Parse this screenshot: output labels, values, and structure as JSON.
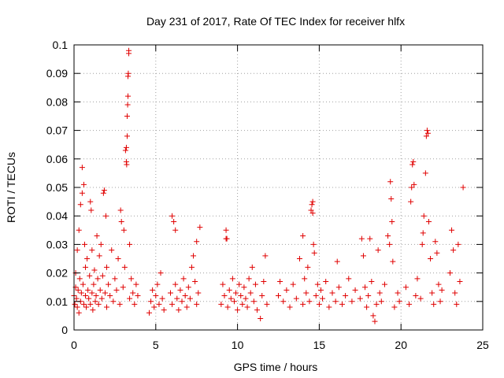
{
  "chart_data": {
    "type": "scatter",
    "title": "Day 231 of 2017, Rate Of TEC Index for receiver hlfx",
    "xlabel": "GPS time / hours",
    "ylabel": "ROTI / TECUs",
    "xlim": [
      0,
      25
    ],
    "ylim": [
      0,
      0.1
    ],
    "xticks": [
      0,
      5,
      10,
      15,
      20,
      25
    ],
    "yticks": [
      0,
      0.01,
      0.02,
      0.03,
      0.04,
      0.05,
      0.06,
      0.07,
      0.08,
      0.09,
      0.1
    ],
    "xtick_labels": [
      "0",
      "5",
      "10",
      "15",
      "20",
      "25"
    ],
    "ytick_labels": [
      "0",
      "0.01",
      "0.02",
      "0.03",
      "0.04",
      "0.05",
      "0.06",
      "0.07",
      "0.08",
      "0.09",
      "0.1"
    ],
    "grid": true,
    "marker": "+",
    "color": "#e00000",
    "series": [
      {
        "name": "ROTI",
        "points": [
          [
            0.0,
            0.012
          ],
          [
            0.05,
            0.009
          ],
          [
            0.1,
            0.015
          ],
          [
            0.1,
            0.02
          ],
          [
            0.15,
            0.011
          ],
          [
            0.2,
            0.008
          ],
          [
            0.2,
            0.028
          ],
          [
            0.25,
            0.014
          ],
          [
            0.3,
            0.006
          ],
          [
            0.3,
            0.035
          ],
          [
            0.35,
            0.018
          ],
          [
            0.4,
            0.01
          ],
          [
            0.4,
            0.044
          ],
          [
            0.45,
            0.013
          ],
          [
            0.5,
            0.057
          ],
          [
            0.5,
            0.048
          ],
          [
            0.55,
            0.016
          ],
          [
            0.6,
            0.051
          ],
          [
            0.6,
            0.009
          ],
          [
            0.65,
            0.03
          ],
          [
            0.7,
            0.022
          ],
          [
            0.7,
            0.012
          ],
          [
            0.75,
            0.008
          ],
          [
            0.8,
            0.025
          ],
          [
            0.85,
            0.014
          ],
          [
            0.9,
            0.011
          ],
          [
            0.95,
            0.019
          ],
          [
            1.0,
            0.045
          ],
          [
            1.0,
            0.009
          ],
          [
            1.05,
            0.042
          ],
          [
            1.1,
            0.013
          ],
          [
            1.1,
            0.028
          ],
          [
            1.15,
            0.007
          ],
          [
            1.2,
            0.016
          ],
          [
            1.25,
            0.021
          ],
          [
            1.3,
            0.01
          ],
          [
            1.35,
            0.012
          ],
          [
            1.4,
            0.033
          ],
          [
            1.45,
            0.018
          ],
          [
            1.5,
            0.009
          ],
          [
            1.55,
            0.026
          ],
          [
            1.6,
            0.014
          ],
          [
            1.65,
            0.03
          ],
          [
            1.7,
            0.011
          ],
          [
            1.75,
            0.019
          ],
          [
            1.8,
            0.048
          ],
          [
            1.85,
            0.049
          ],
          [
            1.9,
            0.013
          ],
          [
            1.95,
            0.04
          ],
          [
            2.0,
            0.022
          ],
          [
            2.0,
            0.008
          ],
          [
            2.1,
            0.016
          ],
          [
            2.2,
            0.012
          ],
          [
            2.3,
            0.028
          ],
          [
            2.4,
            0.01
          ],
          [
            2.5,
            0.018
          ],
          [
            2.6,
            0.014
          ],
          [
            2.7,
            0.025
          ],
          [
            2.8,
            0.009
          ],
          [
            2.85,
            0.042
          ],
          [
            2.9,
            0.038
          ],
          [
            3.0,
            0.015
          ],
          [
            3.05,
            0.035
          ],
          [
            3.1,
            0.022
          ],
          [
            3.15,
            0.063
          ],
          [
            3.2,
            0.064
          ],
          [
            3.2,
            0.059
          ],
          [
            3.22,
            0.058
          ],
          [
            3.25,
            0.068
          ],
          [
            3.25,
            0.075
          ],
          [
            3.28,
            0.079
          ],
          [
            3.3,
            0.082
          ],
          [
            3.3,
            0.089
          ],
          [
            3.32,
            0.09
          ],
          [
            3.35,
            0.097
          ],
          [
            3.35,
            0.098
          ],
          [
            3.4,
            0.03
          ],
          [
            3.4,
            0.011
          ],
          [
            3.5,
            0.018
          ],
          [
            3.6,
            0.013
          ],
          [
            3.7,
            0.009
          ],
          [
            3.8,
            0.016
          ],
          [
            3.9,
            0.012
          ],
          [
            4.6,
            0.006
          ],
          [
            4.7,
            0.01
          ],
          [
            4.8,
            0.014
          ],
          [
            4.9,
            0.008
          ],
          [
            5.0,
            0.012
          ],
          [
            5.1,
            0.016
          ],
          [
            5.2,
            0.009
          ],
          [
            5.3,
            0.02
          ],
          [
            5.4,
            0.011
          ],
          [
            5.5,
            0.007
          ],
          [
            5.9,
            0.013
          ],
          [
            6.0,
            0.009
          ],
          [
            6.0,
            0.04
          ],
          [
            6.1,
            0.038
          ],
          [
            6.2,
            0.035
          ],
          [
            6.2,
            0.016
          ],
          [
            6.3,
            0.011
          ],
          [
            6.4,
            0.007
          ],
          [
            6.5,
            0.014
          ],
          [
            6.6,
            0.01
          ],
          [
            6.7,
            0.018
          ],
          [
            6.8,
            0.012
          ],
          [
            6.9,
            0.008
          ],
          [
            7.0,
            0.015
          ],
          [
            7.1,
            0.011
          ],
          [
            7.2,
            0.022
          ],
          [
            7.3,
            0.026
          ],
          [
            7.4,
            0.017
          ],
          [
            7.5,
            0.031
          ],
          [
            7.5,
            0.009
          ],
          [
            7.6,
            0.013
          ],
          [
            7.7,
            0.036
          ],
          [
            9.0,
            0.009
          ],
          [
            9.1,
            0.016
          ],
          [
            9.2,
            0.012
          ],
          [
            9.3,
            0.035
          ],
          [
            9.3,
            0.032
          ],
          [
            9.35,
            0.032
          ],
          [
            9.4,
            0.008
          ],
          [
            9.5,
            0.014
          ],
          [
            9.6,
            0.011
          ],
          [
            9.7,
            0.018
          ],
          [
            9.8,
            0.01
          ],
          [
            9.9,
            0.013
          ],
          [
            10.0,
            0.007
          ],
          [
            10.1,
            0.016
          ],
          [
            10.2,
            0.012
          ],
          [
            10.3,
            0.009
          ],
          [
            10.4,
            0.015
          ],
          [
            10.5,
            0.011
          ],
          [
            10.6,
            0.008
          ],
          [
            10.7,
            0.018
          ],
          [
            10.8,
            0.013
          ],
          [
            10.9,
            0.022
          ],
          [
            11.0,
            0.01
          ],
          [
            11.1,
            0.016
          ],
          [
            11.2,
            0.007
          ],
          [
            11.4,
            0.004
          ],
          [
            11.5,
            0.012
          ],
          [
            11.6,
            0.017
          ],
          [
            11.7,
            0.026
          ],
          [
            11.8,
            0.009
          ],
          [
            12.5,
            0.012
          ],
          [
            12.6,
            0.017
          ],
          [
            12.8,
            0.01
          ],
          [
            13.0,
            0.014
          ],
          [
            13.2,
            0.008
          ],
          [
            13.4,
            0.016
          ],
          [
            13.6,
            0.011
          ],
          [
            13.8,
            0.025
          ],
          [
            14.0,
            0.033
          ],
          [
            14.0,
            0.009
          ],
          [
            14.1,
            0.018
          ],
          [
            14.2,
            0.013
          ],
          [
            14.3,
            0.022
          ],
          [
            14.4,
            0.01
          ],
          [
            14.5,
            0.042
          ],
          [
            14.55,
            0.044
          ],
          [
            14.6,
            0.045
          ],
          [
            14.6,
            0.041
          ],
          [
            14.65,
            0.03
          ],
          [
            14.7,
            0.027
          ],
          [
            14.8,
            0.012
          ],
          [
            14.9,
            0.016
          ],
          [
            15.0,
            0.009
          ],
          [
            15.1,
            0.014
          ],
          [
            15.2,
            0.011
          ],
          [
            15.4,
            0.017
          ],
          [
            15.6,
            0.008
          ],
          [
            15.8,
            0.013
          ],
          [
            16.0,
            0.01
          ],
          [
            16.1,
            0.024
          ],
          [
            16.2,
            0.015
          ],
          [
            16.4,
            0.009
          ],
          [
            16.6,
            0.012
          ],
          [
            16.8,
            0.018
          ],
          [
            17.0,
            0.01
          ],
          [
            17.2,
            0.014
          ],
          [
            17.5,
            0.011
          ],
          [
            17.6,
            0.032
          ],
          [
            17.7,
            0.026
          ],
          [
            17.8,
            0.015
          ],
          [
            17.9,
            0.008
          ],
          [
            18.0,
            0.012
          ],
          [
            18.1,
            0.032
          ],
          [
            18.2,
            0.017
          ],
          [
            18.3,
            0.005
          ],
          [
            18.4,
            0.003
          ],
          [
            18.5,
            0.009
          ],
          [
            18.6,
            0.028
          ],
          [
            18.7,
            0.013
          ],
          [
            18.8,
            0.01
          ],
          [
            19.0,
            0.016
          ],
          [
            19.2,
            0.033
          ],
          [
            19.3,
            0.03
          ],
          [
            19.35,
            0.052
          ],
          [
            19.4,
            0.046
          ],
          [
            19.45,
            0.038
          ],
          [
            19.5,
            0.024
          ],
          [
            19.6,
            0.008
          ],
          [
            19.8,
            0.013
          ],
          [
            19.9,
            0.01
          ],
          [
            20.3,
            0.015
          ],
          [
            20.5,
            0.009
          ],
          [
            20.6,
            0.045
          ],
          [
            20.65,
            0.05
          ],
          [
            20.7,
            0.058
          ],
          [
            20.75,
            0.059
          ],
          [
            20.8,
            0.051
          ],
          [
            20.9,
            0.012
          ],
          [
            21.0,
            0.018
          ],
          [
            21.2,
            0.011
          ],
          [
            21.3,
            0.03
          ],
          [
            21.35,
            0.034
          ],
          [
            21.4,
            0.04
          ],
          [
            21.5,
            0.055
          ],
          [
            21.55,
            0.068
          ],
          [
            21.6,
            0.07
          ],
          [
            21.65,
            0.069
          ],
          [
            21.7,
            0.038
          ],
          [
            21.8,
            0.025
          ],
          [
            21.9,
            0.013
          ],
          [
            22.0,
            0.009
          ],
          [
            22.1,
            0.031
          ],
          [
            22.2,
            0.027
          ],
          [
            22.3,
            0.016
          ],
          [
            22.4,
            0.01
          ],
          [
            22.5,
            0.014
          ],
          [
            23.0,
            0.02
          ],
          [
            23.1,
            0.035
          ],
          [
            23.2,
            0.028
          ],
          [
            23.3,
            0.013
          ],
          [
            23.4,
            0.009
          ],
          [
            23.5,
            0.03
          ],
          [
            23.6,
            0.017
          ],
          [
            23.8,
            0.05
          ]
        ]
      }
    ]
  }
}
